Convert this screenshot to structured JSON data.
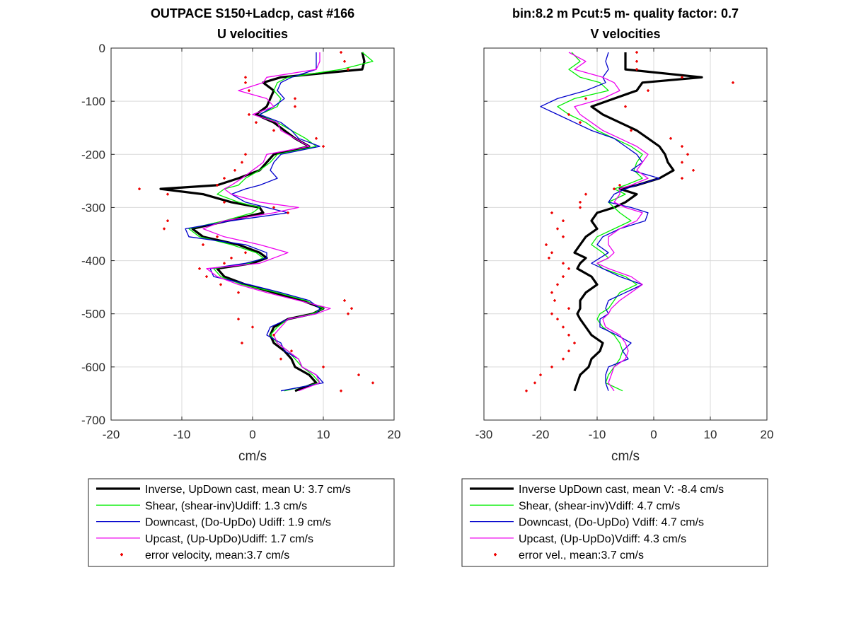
{
  "colors": {
    "inverse": "#000000",
    "shear": "#00ee00",
    "downcast": "#0000cc",
    "upcast": "#ee00ee",
    "error": "#ee0000",
    "grid": "#d9d9d9"
  },
  "chart_data": [
    {
      "type": "line",
      "title": "OUTPACE S150+Ladcp, cast #166",
      "subtitle": "U velocities",
      "xlabel": "cm/s",
      "ylabel": "",
      "xlim": [
        -20,
        20
      ],
      "ylim": [
        -700,
        0
      ],
      "xticks": [
        -20,
        -10,
        0,
        10,
        20
      ],
      "yticks": [
        0,
        -100,
        -200,
        -300,
        -400,
        -500,
        -600,
        -700
      ],
      "grid": true,
      "legend_position": "below",
      "legend": [
        "Inverse, UpDown cast, mean U:  3.7 cm/s",
        "Shear, (shear-inv)Udiff:  1.3 cm/s",
        "Downcast, (Do-UpDo) Udiff:  1.9 cm/s",
        "Upcast, (Up-UpDo)Udiff:  1.7 cm/s",
        "error velocity, mean:3.7 cm/s"
      ],
      "depth": [
        -8,
        -25,
        -40,
        -55,
        -65,
        -80,
        -95,
        -110,
        -125,
        -140,
        -155,
        -170,
        -185,
        -200,
        -215,
        -230,
        -245,
        -258,
        -265,
        -275,
        -290,
        -300,
        -310,
        -325,
        -340,
        -355,
        -370,
        -385,
        -395,
        -405,
        -415,
        -430,
        -445,
        -460,
        -475,
        -490,
        -500,
        -510,
        -525,
        -540,
        -555,
        -570,
        -585,
        -600,
        -615,
        -630,
        -645
      ],
      "series": [
        {
          "key": "inverse",
          "values": [
            15.5,
            15.8,
            15.5,
            4.0,
            1.5,
            3.0,
            2.5,
            2.0,
            0.5,
            3.0,
            4.5,
            6.0,
            8.0,
            3.0,
            2.0,
            1.0,
            -2.0,
            -5.0,
            -13.0,
            -7.0,
            -3.0,
            1.0,
            1.5,
            -3.5,
            -8.5,
            -7.0,
            -2.0,
            1.0,
            2.0,
            0.0,
            -5.0,
            -4.0,
            -1.0,
            3.0,
            7.0,
            10.0,
            8.5,
            5.0,
            3.0,
            2.5,
            3.0,
            4.5,
            5.5,
            6.0,
            8.0,
            9.0,
            6.0
          ]
        },
        {
          "key": "shear",
          "values": [
            15.5,
            17.0,
            12.5,
            5.0,
            3.5,
            3.0,
            4.0,
            3.5,
            1.0,
            3.5,
            5.5,
            7.5,
            9.0,
            3.5,
            2.5,
            1.0,
            -1.0,
            -2.0,
            -4.0,
            -5.0,
            -2.0,
            1.0,
            0.0,
            -4.0,
            -9.0,
            -7.5,
            -3.0,
            0.5,
            1.5,
            -0.5,
            -5.5,
            -4.5,
            -1.5,
            3.5,
            7.5,
            10.0,
            8.5,
            5.0,
            3.5,
            2.5,
            3.5,
            5.0,
            6.0,
            7.0,
            8.5,
            9.5,
            4.5
          ]
        },
        {
          "key": "downcast",
          "values": [
            9.0,
            9.0,
            9.0,
            5.5,
            4.0,
            3.5,
            4.5,
            3.0,
            1.0,
            4.0,
            5.5,
            6.5,
            9.5,
            4.0,
            3.0,
            2.5,
            3.5,
            1.0,
            -1.0,
            -3.0,
            -1.0,
            2.0,
            5.0,
            -3.0,
            -9.5,
            -9.0,
            -1.0,
            2.0,
            2.0,
            -1.0,
            -6.0,
            -5.5,
            -0.5,
            4.0,
            8.0,
            9.5,
            9.0,
            5.0,
            2.5,
            2.0,
            4.0,
            4.5,
            6.5,
            7.0,
            9.0,
            10.0,
            4.0
          ]
        },
        {
          "key": "upcast",
          "values": [
            9.5,
            9.5,
            9.0,
            2.0,
            1.5,
            -2.0,
            2.0,
            3.0,
            0.0,
            3.5,
            4.0,
            6.0,
            8.0,
            2.0,
            1.5,
            0.0,
            -1.5,
            -3.0,
            -4.0,
            -3.0,
            1.0,
            6.5,
            3.0,
            -4.0,
            -7.0,
            -4.0,
            1.0,
            5.0,
            3.0,
            1.0,
            -6.5,
            -5.0,
            -2.0,
            2.0,
            6.5,
            11.0,
            9.0,
            5.0,
            4.0,
            3.0,
            3.5,
            5.0,
            6.5,
            7.0,
            9.0,
            9.5,
            6.5
          ]
        },
        {
          "key": "error",
          "values": [
            12.5,
            13.0,
            13.5,
            -1.0,
            -1.0,
            -0.5,
            6.0,
            6.0,
            -0.5,
            0.5,
            3.0,
            9.0,
            10.0,
            -1.0,
            -1.5,
            -2.5,
            -4.0,
            -5.0,
            -16.0,
            -12.0,
            -4.0,
            3.0,
            5.0,
            -12.0,
            -12.5,
            -5.0,
            -7.0,
            -1.0,
            -3.0,
            -4.0,
            -7.5,
            -6.5,
            -4.5,
            -2.0,
            13.0,
            14.0,
            13.5,
            -2.0,
            0.0,
            3.0,
            -1.5,
            5.5,
            4.0,
            10.0,
            15.0,
            17.0,
            12.5
          ]
        }
      ]
    },
    {
      "type": "line",
      "title": "bin:8.2 m  Pcut:5 m- quality factor:  0.7",
      "subtitle": "V velocities",
      "xlabel": "cm/s",
      "ylabel": "",
      "xlim": [
        -30,
        20
      ],
      "ylim": [
        -700,
        0
      ],
      "xticks": [
        -30,
        -20,
        -10,
        0,
        10,
        20
      ],
      "yticks": [
        0,
        -100,
        -200,
        -300,
        -400,
        -500,
        -600,
        -700
      ],
      "grid": true,
      "legend_position": "below",
      "legend": [
        "Inverse UpDown cast, mean V:  -8.4 cm/s",
        "Shear, (shear-inv)Vdiff:  4.7 cm/s",
        "Downcast, (Do-UpDo) Vdiff:  4.7 cm/s",
        "Upcast, (Up-UpDo)Vdiff:  4.3 cm/s",
        "error vel., mean:3.7 cm/s"
      ],
      "depth": [
        -8,
        -25,
        -40,
        -55,
        -65,
        -80,
        -95,
        -110,
        -125,
        -140,
        -155,
        -170,
        -185,
        -200,
        -215,
        -230,
        -245,
        -258,
        -265,
        -275,
        -290,
        -300,
        -310,
        -325,
        -340,
        -355,
        -370,
        -385,
        -395,
        -405,
        -415,
        -430,
        -445,
        -460,
        -475,
        -490,
        -500,
        -510,
        -525,
        -540,
        -555,
        -570,
        -585,
        -600,
        -615,
        -630,
        -645
      ],
      "series": [
        {
          "key": "inverse",
          "values": [
            -5.0,
            -5.0,
            -5.0,
            8.5,
            -2.0,
            -3.0,
            -7.0,
            -11.0,
            -9.0,
            -6.0,
            -3.0,
            -1.0,
            1.0,
            2.0,
            2.5,
            3.5,
            1.0,
            -3.0,
            -6.0,
            -3.0,
            -5.0,
            -7.0,
            -10.0,
            -11.0,
            -10.0,
            -12.0,
            -13.0,
            -14.0,
            -12.0,
            -13.0,
            -13.5,
            -11.0,
            -10.0,
            -12.0,
            -13.0,
            -13.0,
            -13.5,
            -13.0,
            -12.0,
            -11.0,
            -9.0,
            -9.5,
            -11.0,
            -11.5,
            -13.0,
            -13.5,
            -14.0
          ]
        },
        {
          "key": "shear",
          "values": [
            -14.5,
            -13.0,
            -15.0,
            -13.0,
            -9.5,
            -8.0,
            -14.0,
            -17.0,
            -15.0,
            -12.0,
            -10.0,
            -7.0,
            -4.0,
            -2.0,
            -3.0,
            -3.5,
            -2.0,
            -5.0,
            -7.0,
            -5.0,
            -8.0,
            -7.0,
            -6.0,
            -4.0,
            -7.0,
            -10.0,
            -11.0,
            -9.0,
            -8.0,
            -10.0,
            -9.0,
            -5.0,
            -3.0,
            -6.0,
            -7.0,
            -8.0,
            -9.5,
            -10.0,
            -9.0,
            -7.0,
            -6.0,
            -5.5,
            -6.0,
            -7.0,
            -8.0,
            -8.5,
            -5.5
          ]
        },
        {
          "key": "downcast",
          "values": [
            -8.0,
            -8.5,
            -8.0,
            -9.0,
            -8.5,
            -12.0,
            -17.0,
            -20.0,
            -17.0,
            -14.0,
            -11.0,
            -7.0,
            -5.0,
            -3.0,
            -2.0,
            -4.0,
            1.0,
            -3.0,
            -5.0,
            -7.0,
            -8.0,
            -4.0,
            -1.0,
            -1.5,
            -6.0,
            -9.0,
            -10.0,
            -8.0,
            -9.5,
            -11.0,
            -9.0,
            -6.0,
            -2.0,
            -5.0,
            -8.0,
            -8.5,
            -8.0,
            -9.5,
            -9.5,
            -6.5,
            -4.0,
            -5.5,
            -4.5,
            -8.0,
            -8.5,
            -8.5,
            -8.0
          ]
        },
        {
          "key": "upcast",
          "values": [
            -15.0,
            -12.0,
            -14.0,
            -9.0,
            -7.0,
            -6.0,
            -9.0,
            -14.0,
            -13.0,
            -11.0,
            -9.0,
            -6.0,
            -3.0,
            -1.0,
            -2.0,
            -3.0,
            -1.0,
            -4.0,
            -6.0,
            -6.0,
            -7.0,
            -5.0,
            -2.0,
            -3.0,
            -6.0,
            -8.0,
            -8.0,
            -7.0,
            -8.0,
            -10.0,
            -8.0,
            -4.0,
            -2.0,
            -4.0,
            -6.0,
            -7.5,
            -8.0,
            -9.0,
            -8.5,
            -6.0,
            -5.0,
            -4.5,
            -5.0,
            -7.0,
            -7.5,
            -8.0,
            -7.0
          ]
        },
        {
          "key": "error",
          "values": [
            -3.0,
            -3.0,
            -3.0,
            5.0,
            14.0,
            -1.0,
            -12.0,
            -5.0,
            -15.0,
            -13.0,
            -4.0,
            3.0,
            5.0,
            6.0,
            5.0,
            7.0,
            5.0,
            -6.0,
            -7.0,
            -12.0,
            -13.0,
            -13.0,
            -18.0,
            -16.0,
            -17.0,
            -16.0,
            -19.0,
            -18.0,
            -18.5,
            -16.0,
            -15.0,
            -16.0,
            -17.0,
            -18.0,
            -17.5,
            -15.0,
            -18.0,
            -17.0,
            -16.0,
            -15.0,
            -14.0,
            -15.0,
            -16.0,
            -18.0,
            -20.0,
            -21.0,
            -22.5
          ]
        }
      ]
    }
  ]
}
